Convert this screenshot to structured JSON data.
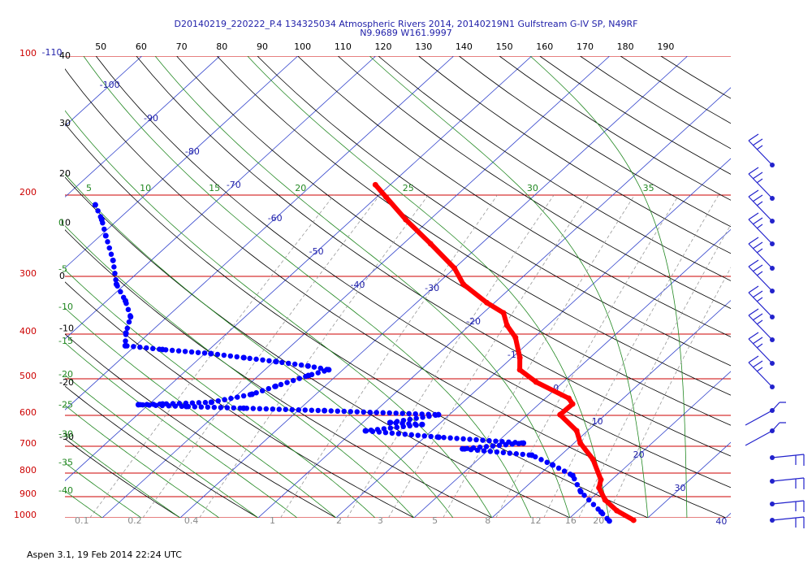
{
  "header": {
    "title": "D20140219_220222_P.4 134325034 Atmospheric Rivers 2014, 20140219N1 Gulfstream G-IV SP, N49RF",
    "subtitle": "N9.9689 W161.9997"
  },
  "footer": "Aspen 3.1, 19 Feb 2014  22:24 UTC",
  "isobars": [
    100,
    200,
    300,
    400,
    500,
    600,
    700,
    800,
    900,
    1000
  ],
  "isotherms": [
    -110,
    -100,
    -90,
    -80,
    -70,
    -60,
    -50,
    -40,
    -30,
    -20,
    -10,
    0,
    10,
    20,
    30,
    40
  ],
  "dry_adiabats": [
    -30,
    -20,
    -10,
    0,
    10,
    20,
    30,
    40,
    50,
    60,
    70,
    80,
    90,
    100,
    110,
    120,
    130,
    140,
    150,
    160,
    170,
    180,
    190
  ],
  "moist_adiabats": [
    -40,
    -35,
    -30,
    -25,
    -20,
    -15,
    -10,
    -5,
    0,
    5,
    10,
    15,
    20,
    25,
    30,
    35
  ],
  "mixing_ratios": [
    0.1,
    0.2,
    0.4,
    1,
    2,
    3,
    5,
    8,
    12,
    16,
    20
  ],
  "temperature": {
    "color": "#ff0000",
    "points": [
      [
        190,
        -51.9
      ],
      [
        202,
        -48.8
      ],
      [
        226,
        -43.1
      ],
      [
        255,
        -36.5
      ],
      [
        288,
        -30.0
      ],
      [
        312,
        -26.6
      ],
      [
        342,
        -21.0
      ],
      [
        360,
        -17.4
      ],
      [
        383,
        -15.2
      ],
      [
        407,
        -12.4
      ],
      [
        450,
        -9.0
      ],
      [
        478,
        -7.3
      ],
      [
        508,
        -3.5
      ],
      [
        551,
        3.0
      ],
      [
        567,
        4.3
      ],
      [
        598,
        4.2
      ],
      [
        648,
        8.6
      ],
      [
        689,
        10.8
      ],
      [
        747,
        14.7
      ],
      [
        827,
        18.6
      ],
      [
        861,
        19.5
      ],
      [
        915,
        22.0
      ],
      [
        965,
        25.0
      ],
      [
        1012,
        28.5
      ]
    ]
  },
  "dewpoint": {
    "color": "#0000ff",
    "points": [
      [
        210,
        -85.0
      ],
      [
        226,
        -82.1
      ],
      [
        245,
        -79.3
      ],
      [
        277,
        -74.9
      ],
      [
        312,
        -71.1
      ],
      [
        339,
        -67.6
      ],
      [
        367,
        -64.7
      ],
      [
        398,
        -63.0
      ],
      [
        424,
        -61.3
      ],
      [
        432,
        -56.0
      ],
      [
        441,
        -49.2
      ],
      [
        450,
        -44.4
      ],
      [
        459,
        -39.7
      ],
      [
        469,
        -35.0
      ],
      [
        478,
        -31.8
      ],
      [
        492,
        -33.6
      ],
      [
        519,
        -36.3
      ],
      [
        540,
        -38.2
      ],
      [
        562,
        -42.3
      ],
      [
        567,
        -48.3
      ],
      [
        569,
        -51.3
      ],
      [
        574,
        -44.9
      ],
      [
        579,
        -37.3
      ],
      [
        586,
        -26.6
      ],
      [
        598,
        -11.4
      ],
      [
        622,
        -16.5
      ],
      [
        628,
        -12.1
      ],
      [
        648,
        -18.5
      ],
      [
        669,
        -8.2
      ],
      [
        689,
        3.5
      ],
      [
        709,
        -3.5
      ],
      [
        732,
        6.3
      ],
      [
        768,
        10.3
      ],
      [
        810,
        14.4
      ],
      [
        878,
        17.7
      ],
      [
        972,
        23.2
      ],
      [
        1016,
        25.5
      ]
    ]
  }
}
